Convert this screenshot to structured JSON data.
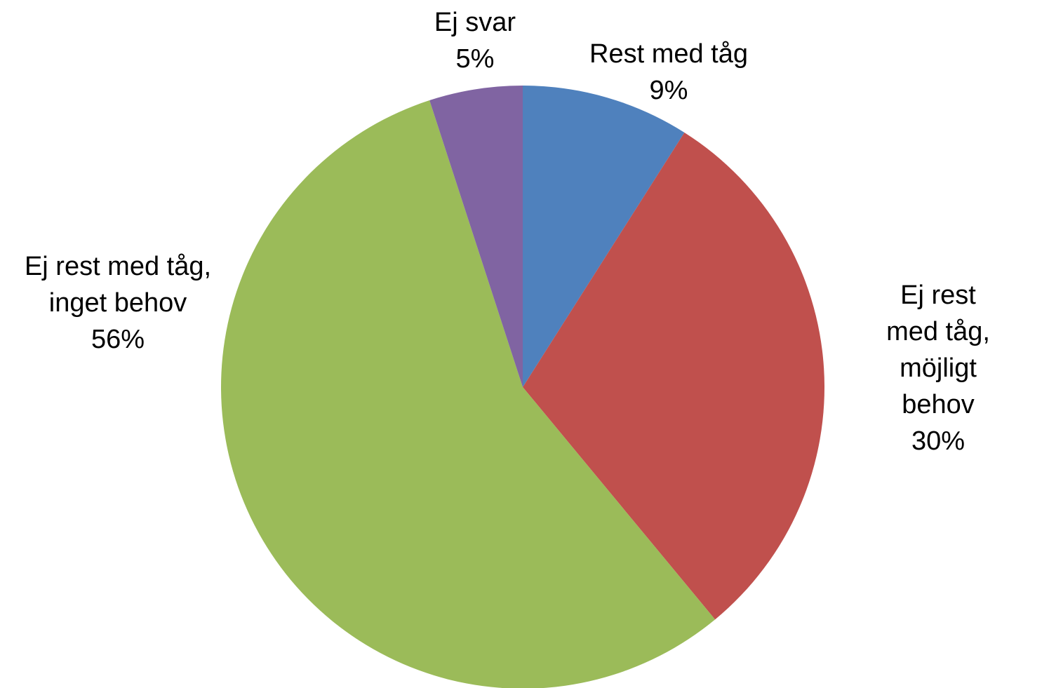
{
  "chart_data": {
    "type": "pie",
    "categories": [
      "Rest med tåg",
      "Ej rest med tåg,\nmöjligt behov",
      "Ej rest med tåg,\ninget behov",
      "Ej svar"
    ],
    "values": [
      9,
      30,
      56,
      5
    ],
    "value_labels": [
      "9%",
      "30%",
      "56%",
      "5%"
    ],
    "colors": [
      "#4f81bd",
      "#c0504d",
      "#9bbb59",
      "#8064a2"
    ]
  }
}
